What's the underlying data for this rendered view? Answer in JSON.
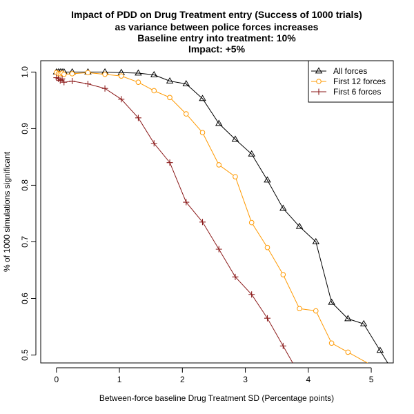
{
  "title_lines": [
    "Impact of PDD on Drug Treatment entry (Success of 1000 trials)",
    "as variance between police forces increases"
  ],
  "subtitle_lines": [
    {
      "text": "Baseline entry into treatment: 10%",
      "color": "#8B0000"
    },
    {
      "text": "Impact: +5%",
      "color": "#006400"
    }
  ],
  "chart_data": {
    "type": "line",
    "xlabel": "Between-force baseline Drug Treatment SD (Percentage points)",
    "ylabel": "% of 1000 simulations significant",
    "xlim": [
      -0.25,
      5.35
    ],
    "ylim": [
      0.486,
      1.02
    ],
    "x_ticks": [
      "0",
      "1",
      "2",
      "3",
      "4",
      "5"
    ],
    "y_ticks": [
      "0.5",
      "0.6",
      "0.7",
      "0.8",
      "0.9",
      "1.0"
    ],
    "grid": false,
    "legend_position": "top-right",
    "series": [
      {
        "name": "All forces",
        "color": "#000000",
        "marker": "triangle",
        "x": [
          0,
          0.03,
          0.06,
          0.09,
          0.12,
          0.25,
          0.5,
          0.77,
          1.03,
          1.3,
          1.55,
          1.8,
          2.06,
          2.32,
          2.58,
          2.84,
          3.1,
          3.35,
          3.6,
          3.86,
          4.12,
          4.37,
          4.63,
          4.88,
          5.14
        ],
        "y": [
          1.0,
          1.0,
          1.0,
          1.0,
          1.0,
          1.0,
          1.0,
          1.0,
          0.999,
          0.998,
          0.995,
          0.984,
          0.979,
          0.953,
          0.909,
          0.881,
          0.855,
          0.809,
          0.759,
          0.727,
          0.7,
          0.593,
          0.564,
          0.555,
          0.508
        ]
      },
      {
        "name": "First 12 forces",
        "color": "#FF9900",
        "marker": "circle",
        "x": [
          0,
          0.03,
          0.06,
          0.09,
          0.12,
          0.25,
          0.5,
          0.77,
          1.03,
          1.3,
          1.55,
          1.8,
          2.06,
          2.32,
          2.58,
          2.84,
          3.1,
          3.35,
          3.6,
          3.86,
          4.12,
          4.37,
          4.63
        ],
        "y": [
          0.999,
          0.997,
          0.997,
          0.998,
          0.996,
          0.997,
          0.999,
          0.996,
          0.993,
          0.982,
          0.967,
          0.955,
          0.926,
          0.893,
          0.836,
          0.815,
          0.734,
          0.69,
          0.642,
          0.582,
          0.578,
          0.521,
          0.505
        ]
      },
      {
        "name": "First 6 forces",
        "color": "#8B1A1A",
        "marker": "plus",
        "x": [
          0,
          0.03,
          0.06,
          0.09,
          0.12,
          0.25,
          0.5,
          0.77,
          1.03,
          1.3,
          1.55,
          1.8,
          2.06,
          2.32,
          2.58,
          2.84,
          3.1,
          3.35,
          3.6
        ],
        "y": [
          0.99,
          0.988,
          0.985,
          0.988,
          0.982,
          0.984,
          0.979,
          0.971,
          0.952,
          0.919,
          0.874,
          0.84,
          0.77,
          0.735,
          0.687,
          0.638,
          0.607,
          0.565,
          0.516
        ]
      }
    ]
  }
}
